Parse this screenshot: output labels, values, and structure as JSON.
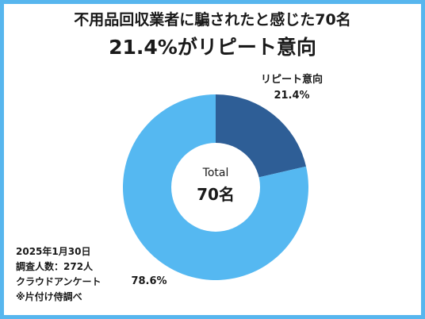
{
  "title_line1": "不用品回収業者に騙されたと感じた70名",
  "title_line2": "21.4%がリピート意向",
  "chart_data": {
    "type": "pie",
    "donut": true,
    "slices": [
      {
        "label": "リピート意向",
        "value": 21.4,
        "display": "21.4%",
        "color": "#2e5e96"
      },
      {
        "label": "",
        "value": 78.6,
        "display": "78.6%",
        "color": "#55b8f1"
      }
    ],
    "center_label": "Total",
    "center_value": "70名"
  },
  "notes": [
    "2025年1月30日",
    "調査人数：272人",
    "クラウドアンケート",
    "※片付け侍調べ"
  ],
  "colors": {
    "border": "#57b6ee",
    "text": "#1a1a1a"
  }
}
